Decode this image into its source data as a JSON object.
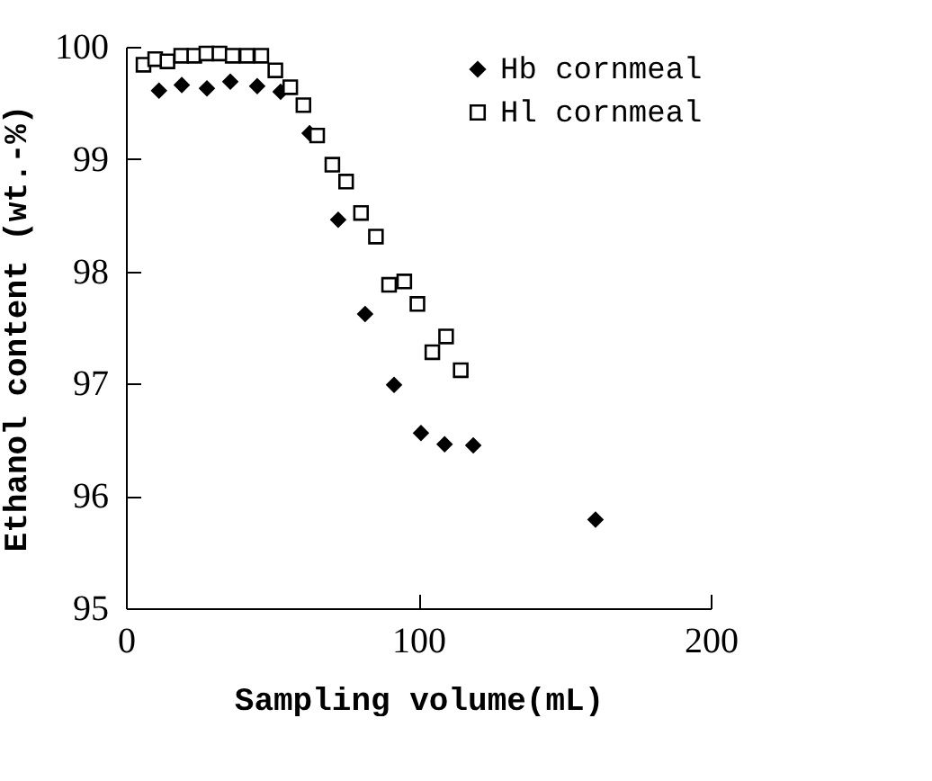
{
  "chart_data": {
    "type": "scatter",
    "xlabel": "Sampling volume(mL)",
    "ylabel": "Ethanol content (wt.-%)",
    "xlim": [
      0,
      200
    ],
    "xticks": [
      0,
      100,
      200
    ],
    "ylim": [
      95,
      100
    ],
    "yticks": [
      95,
      96,
      97,
      98,
      99,
      100
    ],
    "grid": false,
    "legend": "top right",
    "series": [
      {
        "name": "Hb cornmeal",
        "color": "#000000",
        "marker": "diamond",
        "x": [
          11.3,
          19.1,
          27.7,
          35.7,
          44.9,
          52.9,
          62.8,
          72.6,
          81.8,
          91.7,
          100.9,
          109,
          118.8,
          160.6
        ],
        "values": [
          99.61,
          99.66,
          99.63,
          99.69,
          99.65,
          99.6,
          99.23,
          98.46,
          97.62,
          96.99,
          96.56,
          96.46,
          96.45,
          95.79
        ]
      },
      {
        "name": "Hl cornmeal",
        "color": "#000000",
        "marker": "square",
        "x": [
          6,
          10,
          14.2,
          18.9,
          23.4,
          27.5,
          32,
          36.5,
          41.4,
          46.3,
          51.1,
          56.2,
          60.7,
          65.4,
          70.6,
          75.3,
          80.4,
          85.5,
          90,
          95.2,
          99.7,
          104.8,
          109.5,
          114.5
        ],
        "values": [
          99.84,
          99.89,
          99.87,
          99.92,
          99.92,
          99.94,
          99.94,
          99.92,
          99.92,
          99.92,
          99.79,
          99.64,
          99.48,
          99.21,
          98.95,
          98.8,
          98.52,
          98.31,
          97.88,
          97.91,
          97.71,
          97.28,
          97.42,
          97.12
        ]
      }
    ]
  }
}
